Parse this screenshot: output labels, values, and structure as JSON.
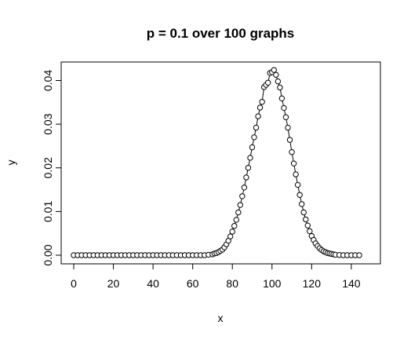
{
  "chart_data": {
    "type": "line",
    "title": "p = 0.1 over 100 graphs",
    "xlabel": "x",
    "ylabel": "y",
    "xlim": [
      0,
      144
    ],
    "ylim": [
      0,
      0.042
    ],
    "xticks": [
      0,
      20,
      40,
      60,
      80,
      100,
      120,
      140
    ],
    "xtick_labels": [
      "0",
      "20",
      "40",
      "60",
      "80",
      "100",
      "120",
      "140"
    ],
    "yticks": [
      0.0,
      0.01,
      0.02,
      0.03,
      0.04
    ],
    "ytick_labels": [
      "0.00",
      "0.01",
      "0.02",
      "0.03",
      "0.04"
    ],
    "grid": false,
    "legend": "none",
    "series": [
      {
        "marker": "open-circle",
        "line": true,
        "x": [
          0,
          2,
          4,
          6,
          8,
          10,
          12,
          14,
          16,
          18,
          20,
          22,
          24,
          26,
          28,
          30,
          32,
          34,
          36,
          38,
          40,
          42,
          44,
          46,
          48,
          50,
          52,
          54,
          56,
          58,
          60,
          62,
          64,
          66,
          68,
          70,
          71,
          72,
          73,
          74,
          75,
          76,
          77,
          78,
          79,
          80,
          81,
          82,
          83,
          84,
          85,
          86,
          87,
          88,
          89,
          90,
          91,
          92,
          93,
          94,
          95,
          96,
          97,
          98,
          99,
          100,
          101,
          102,
          103,
          104,
          105,
          106,
          107,
          108,
          109,
          110,
          111,
          112,
          113,
          114,
          115,
          116,
          117,
          118,
          119,
          120,
          121,
          122,
          123,
          124,
          125,
          126,
          127,
          128,
          129,
          130,
          131,
          132,
          134,
          136,
          138,
          140,
          142,
          144
        ],
        "y": [
          0,
          0,
          0,
          0,
          0,
          0,
          0,
          0,
          0,
          0,
          0,
          0,
          0,
          0,
          0,
          0,
          0,
          0,
          0,
          0,
          0,
          0,
          0,
          0,
          0,
          0,
          0,
          0,
          0,
          0,
          0,
          0,
          0,
          0,
          0.0001,
          0.0002,
          0.0004,
          0.0005,
          0.0007,
          0.001,
          0.0013,
          0.0018,
          0.0025,
          0.0033,
          0.0043,
          0.0054,
          0.0067,
          0.0081,
          0.0098,
          0.0115,
          0.0135,
          0.0155,
          0.0178,
          0.02,
          0.0223,
          0.0247,
          0.027,
          0.0292,
          0.0318,
          0.0338,
          0.0351,
          0.0385,
          0.039,
          0.0395,
          0.0417,
          0.0419,
          0.0424,
          0.0413,
          0.0398,
          0.0384,
          0.0359,
          0.0337,
          0.0316,
          0.0292,
          0.0264,
          0.0236,
          0.021,
          0.0185,
          0.0161,
          0.0138,
          0.0117,
          0.0098,
          0.0082,
          0.0068,
          0.0055,
          0.0044,
          0.0035,
          0.0027,
          0.0021,
          0.0016,
          0.0012,
          0.0009,
          0.0007,
          0.0005,
          0.0004,
          0.0003,
          0.0002,
          0.0001,
          5e-05,
          0,
          0,
          0,
          0,
          0
        ]
      }
    ]
  }
}
